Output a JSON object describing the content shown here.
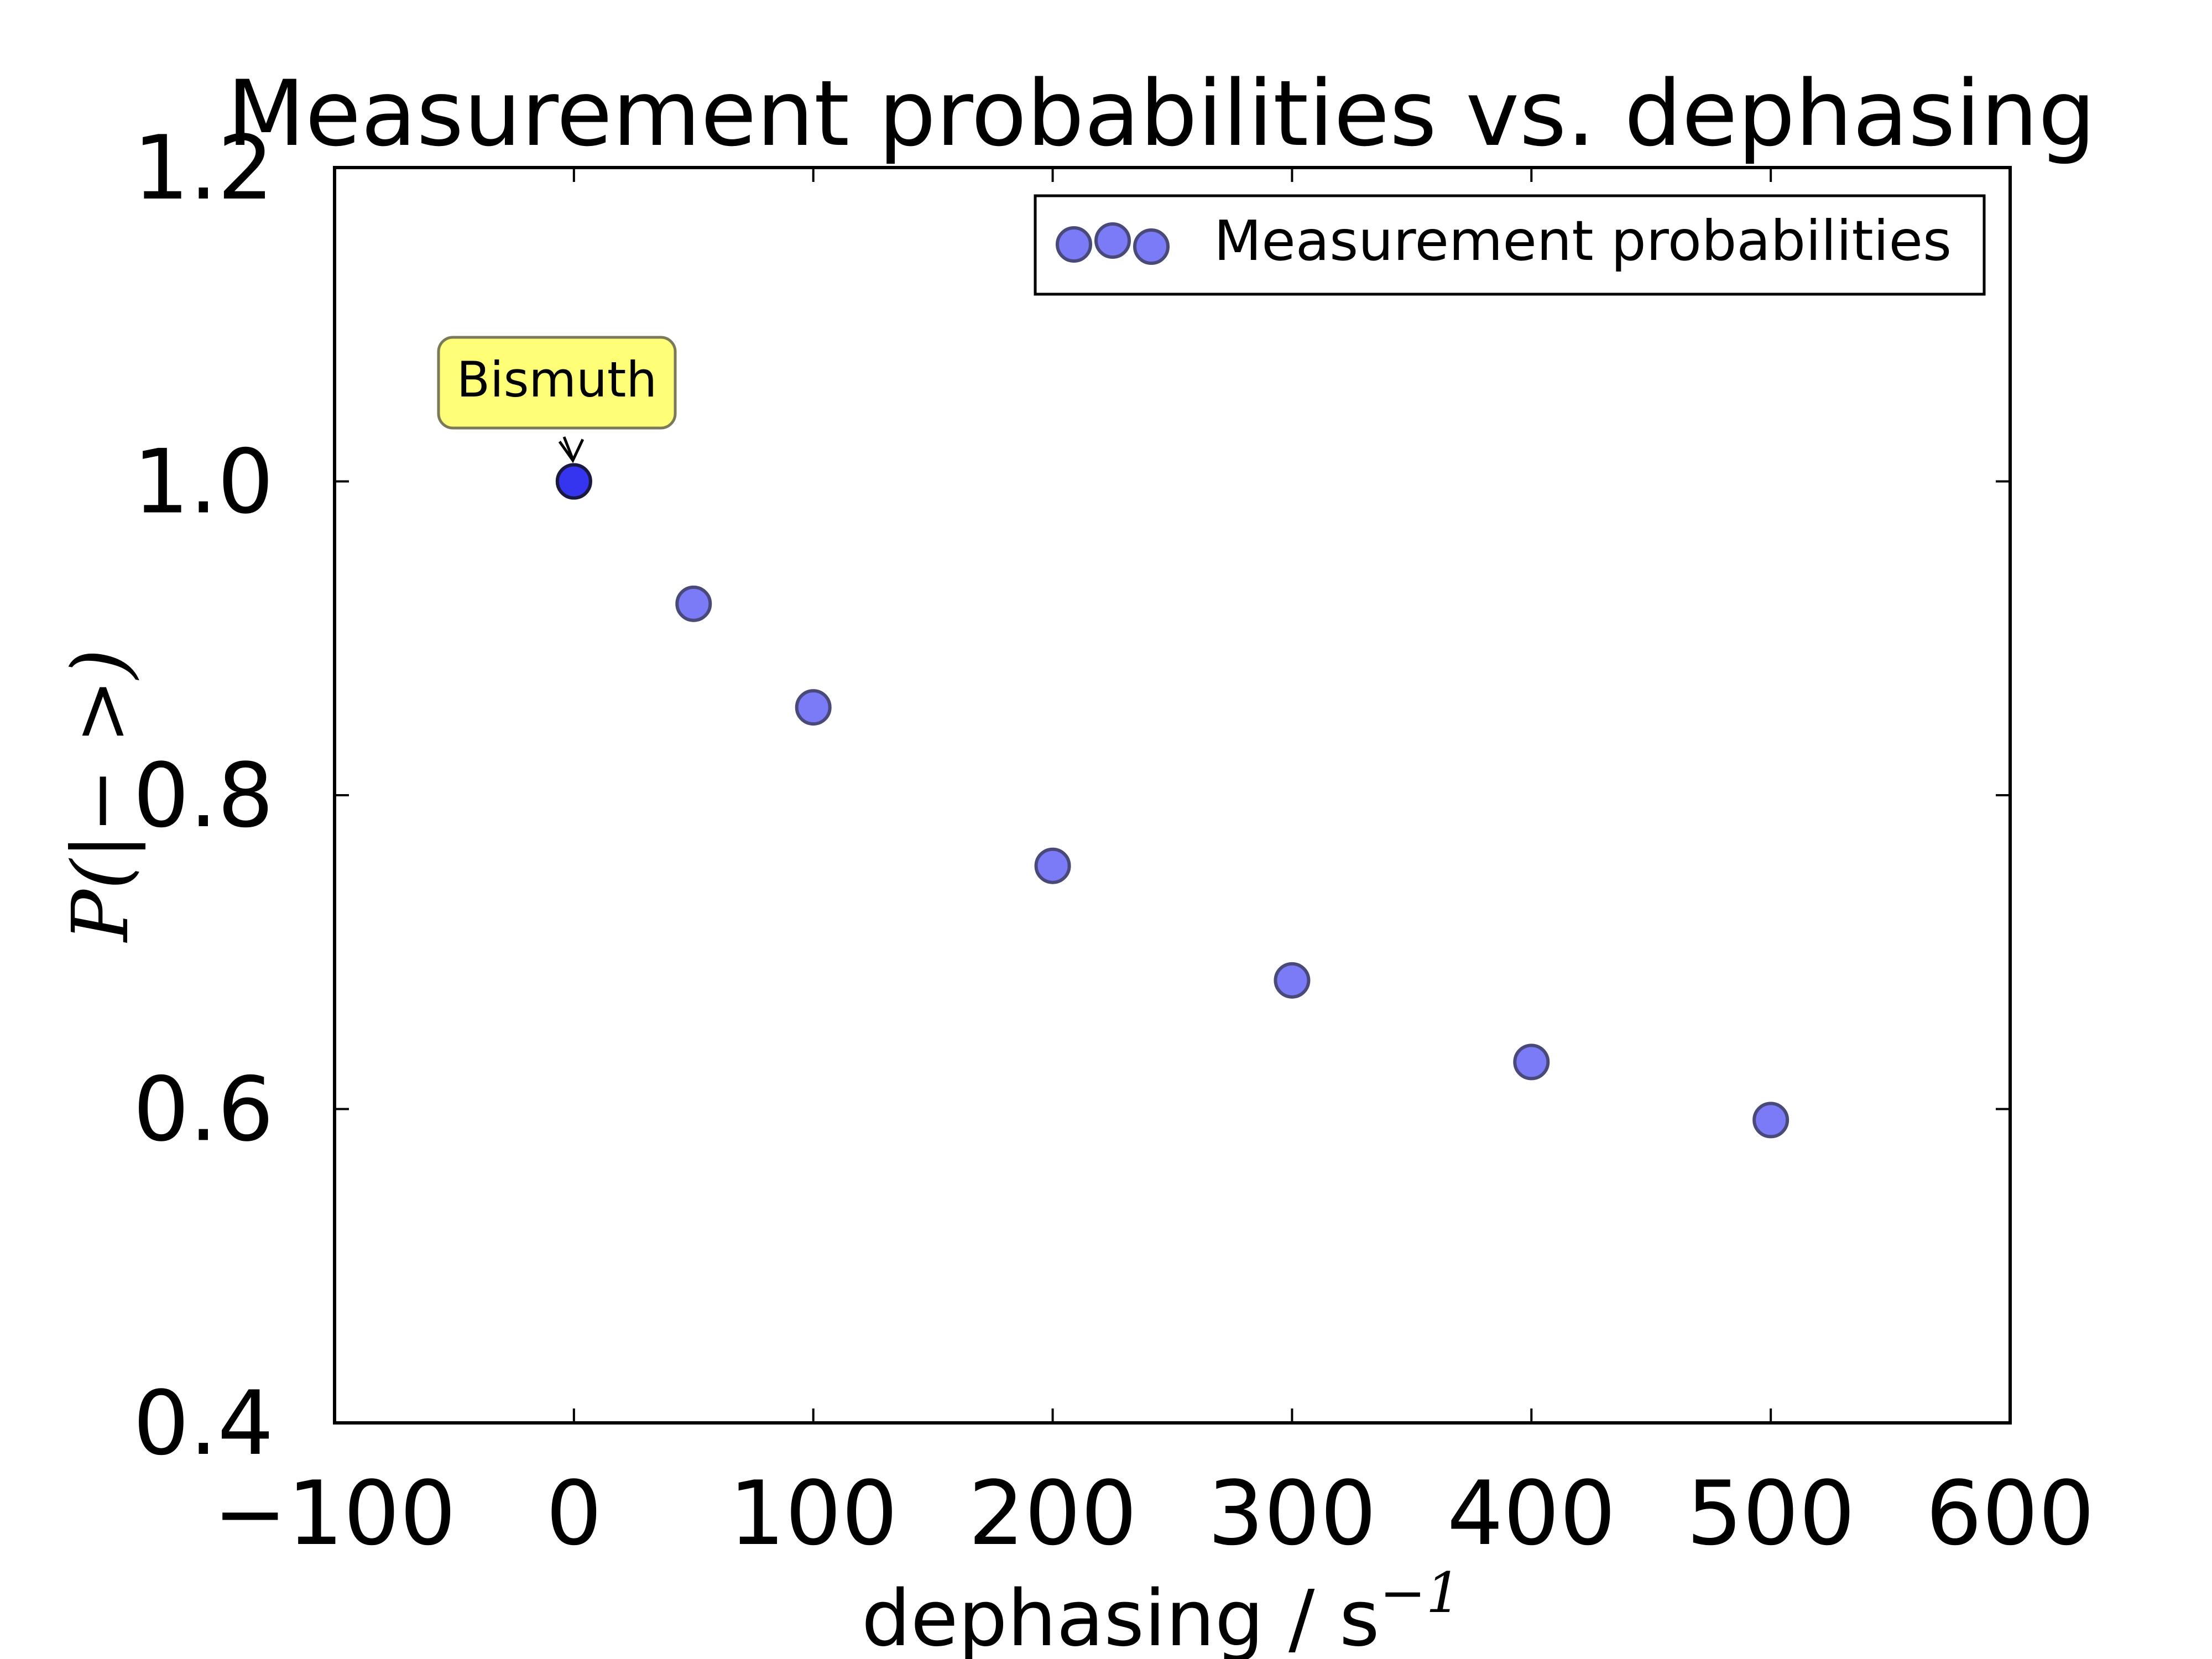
{
  "chart_data": {
    "type": "scatter",
    "title": "Measurement probabilities vs. dephasing",
    "xlabel": "dephasing / s",
    "xlabel_superscript": "−1",
    "ylabel": "P(|− >)",
    "xlim": [
      -100,
      600
    ],
    "ylim": [
      0.4,
      1.2
    ],
    "x_ticks": [
      -100,
      0,
      100,
      200,
      300,
      400,
      500,
      600
    ],
    "x_tick_labels": [
      "−100",
      "0",
      "100",
      "200",
      "300",
      "400",
      "500",
      "600"
    ],
    "y_ticks": [
      0.4,
      0.6,
      0.8,
      1.0,
      1.2
    ],
    "y_tick_labels": [
      "0.4",
      "0.6",
      "0.8",
      "1.0",
      "1.2"
    ],
    "grid": false,
    "legend_position": "top-right",
    "series": [
      {
        "name": "Measurement probabilities",
        "color": "#7b7bf7",
        "edge_color": "#4a4a7a",
        "x": [
          0,
          50,
          100,
          200,
          300,
          400,
          500
        ],
        "y": [
          1.0,
          0.922,
          0.856,
          0.755,
          0.682,
          0.63,
          0.593
        ]
      }
    ],
    "annotations": [
      {
        "text": "Bismuth",
        "x": 0,
        "y": 1.0,
        "box_color": "#ffff77",
        "point_color": "#3535f0"
      }
    ]
  }
}
